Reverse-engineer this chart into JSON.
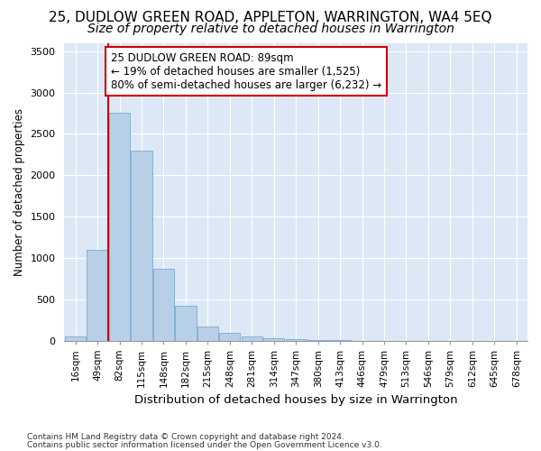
{
  "title": "25, DUDLOW GREEN ROAD, APPLETON, WARRINGTON, WA4 5EQ",
  "subtitle": "Size of property relative to detached houses in Warrington",
  "xlabel": "Distribution of detached houses by size in Warrington",
  "ylabel": "Number of detached properties",
  "categories": [
    "16sqm",
    "49sqm",
    "82sqm",
    "115sqm",
    "148sqm",
    "182sqm",
    "215sqm",
    "248sqm",
    "281sqm",
    "314sqm",
    "347sqm",
    "380sqm",
    "413sqm",
    "446sqm",
    "479sqm",
    "513sqm",
    "546sqm",
    "579sqm",
    "612sqm",
    "645sqm",
    "678sqm"
  ],
  "values": [
    50,
    1100,
    2750,
    2300,
    870,
    420,
    170,
    90,
    50,
    30,
    20,
    5,
    2,
    0,
    0,
    0,
    0,
    0,
    0,
    0,
    0
  ],
  "bar_color": "#b8cfe8",
  "bar_edge_color": "#7aaad0",
  "property_line_x": 2,
  "property_line_color": "#cc0000",
  "annotation_text": "25 DUDLOW GREEN ROAD: 89sqm\n← 19% of detached houses are smaller (1,525)\n80% of semi-detached houses are larger (6,232) →",
  "annotation_box_color": "#ffffff",
  "annotation_box_edge_color": "#cc0000",
  "footnote1": "Contains HM Land Registry data © Crown copyright and database right 2024.",
  "footnote2": "Contains public sector information licensed under the Open Government Licence v3.0.",
  "ylim": [
    0,
    3600
  ],
  "yticks": [
    0,
    500,
    1000,
    1500,
    2000,
    2500,
    3000,
    3500
  ],
  "fig_bg_color": "#ffffff",
  "plot_bg_color": "#dce8f5",
  "title_fontsize": 11,
  "subtitle_fontsize": 10,
  "grid_color": "#ffffff"
}
